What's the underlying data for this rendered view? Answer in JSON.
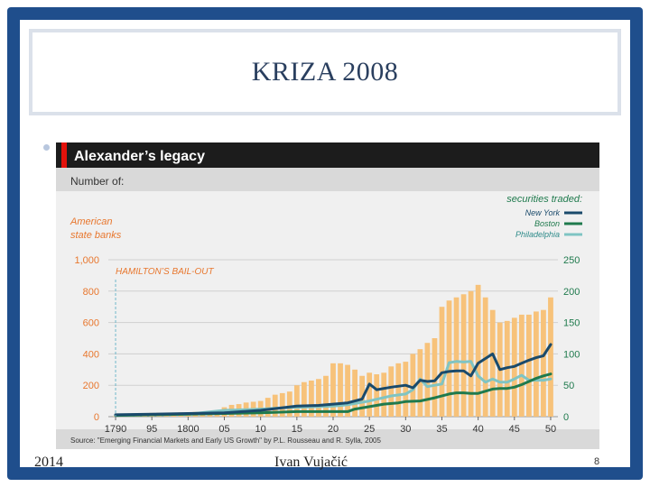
{
  "slide": {
    "title": "KRIZA 2008",
    "footer_left": "2014",
    "footer_center": "Ivan Vujačić",
    "page_number": "8"
  },
  "colors": {
    "frame": "#1f4e8c",
    "chart_title_bar": "#1c1c1c",
    "accent_red": "#e3120b",
    "orange_text": "#e8772e",
    "bars": "#f7c27a",
    "new_york": "#1a4a6b",
    "boston": "#1f7a4d",
    "philadelphia": "#7fc4c3"
  },
  "chart_data": {
    "type": "bar",
    "title": "Alexander’s legacy",
    "subtitle": "Number of:",
    "left_axis_label": [
      "American",
      "state banks"
    ],
    "right_axis_label": "securities traded:",
    "annotation": "HAMILTON’S BAIL-OUT",
    "annotation_x": 1790,
    "source": "Source: \"Emerging Financial Markets and Early US Growth\" by P.L. Rousseau and R. Sylla, 2005",
    "x_ticks": [
      {
        "x": 1790,
        "label": "1790"
      },
      {
        "x": 1795,
        "label": "95"
      },
      {
        "x": 1800,
        "label": "1800"
      },
      {
        "x": 1805,
        "label": "05"
      },
      {
        "x": 1810,
        "label": "10"
      },
      {
        "x": 1815,
        "label": "15"
      },
      {
        "x": 1820,
        "label": "20"
      },
      {
        "x": 1825,
        "label": "25"
      },
      {
        "x": 1830,
        "label": "30"
      },
      {
        "x": 1835,
        "label": "35"
      },
      {
        "x": 1840,
        "label": "40"
      },
      {
        "x": 1845,
        "label": "45"
      },
      {
        "x": 1850,
        "label": "50"
      }
    ],
    "left_ticks": [
      {
        "v": 0,
        "label": "0"
      },
      {
        "v": 200,
        "label": "200"
      },
      {
        "v": 400,
        "label": "400"
      },
      {
        "v": 600,
        "label": "600"
      },
      {
        "v": 800,
        "label": "800"
      },
      {
        "v": 1000,
        "label": "1,000"
      }
    ],
    "right_ticks": [
      {
        "v": 0,
        "label": "0"
      },
      {
        "v": 50,
        "label": "50"
      },
      {
        "v": 100,
        "label": "100"
      },
      {
        "v": 150,
        "label": "150"
      },
      {
        "v": 200,
        "label": "200"
      },
      {
        "v": 250,
        "label": "250"
      }
    ],
    "xlim": [
      1789,
      1851
    ],
    "ylim_left": [
      0,
      1000
    ],
    "ylim_right": [
      0,
      250
    ],
    "bar_series": {
      "name": "American state banks",
      "x": [
        1790,
        1791,
        1792,
        1793,
        1794,
        1795,
        1796,
        1797,
        1798,
        1799,
        1800,
        1801,
        1802,
        1803,
        1804,
        1805,
        1806,
        1807,
        1808,
        1809,
        1810,
        1811,
        1812,
        1813,
        1814,
        1815,
        1816,
        1817,
        1818,
        1819,
        1820,
        1821,
        1822,
        1823,
        1824,
        1825,
        1826,
        1827,
        1828,
        1829,
        1830,
        1831,
        1832,
        1833,
        1834,
        1835,
        1836,
        1837,
        1838,
        1839,
        1840,
        1841,
        1842,
        1843,
        1844,
        1845,
        1846,
        1847,
        1848,
        1849,
        1850
      ],
      "values": [
        3,
        4,
        15,
        20,
        22,
        24,
        25,
        26,
        26,
        27,
        28,
        30,
        31,
        33,
        40,
        60,
        75,
        80,
        90,
        95,
        100,
        120,
        140,
        150,
        160,
        200,
        220,
        230,
        240,
        260,
        340,
        340,
        330,
        300,
        260,
        280,
        270,
        280,
        320,
        340,
        350,
        400,
        430,
        470,
        500,
        700,
        740,
        760,
        780,
        800,
        840,
        760,
        680,
        600,
        610,
        630,
        650,
        650,
        670,
        680,
        760
      ]
    },
    "series": [
      {
        "name": "New York",
        "axis": "right",
        "x": [
          1790,
          1795,
          1800,
          1805,
          1810,
          1815,
          1818,
          1820,
          1822,
          1824,
          1825,
          1826,
          1828,
          1830,
          1831,
          1832,
          1833,
          1834,
          1835,
          1836,
          1837,
          1838,
          1839,
          1840,
          1842,
          1843,
          1844,
          1845,
          1846,
          1847,
          1848,
          1849,
          1850
        ],
        "values": [
          3,
          4,
          5,
          6,
          10,
          17,
          18,
          20,
          22,
          28,
          52,
          43,
          47,
          50,
          46,
          58,
          56,
          57,
          70,
          72,
          73,
          73,
          65,
          85,
          100,
          75,
          78,
          80,
          85,
          90,
          94,
          97,
          115
        ]
      },
      {
        "name": "Boston",
        "axis": "right",
        "x": [
          1790,
          1795,
          1800,
          1805,
          1810,
          1815,
          1820,
          1822,
          1823,
          1825,
          1827,
          1829,
          1830,
          1832,
          1834,
          1836,
          1837,
          1838,
          1839,
          1840,
          1842,
          1843,
          1844,
          1845,
          1846,
          1847,
          1848,
          1849,
          1850
        ],
        "values": [
          2,
          3,
          4,
          5,
          6,
          8,
          8,
          8,
          12,
          16,
          20,
          22,
          24,
          25,
          30,
          36,
          38,
          38,
          37,
          37,
          44,
          45,
          45,
          47,
          51,
          56,
          61,
          65,
          68
        ]
      },
      {
        "name": "Philadelphia",
        "axis": "right",
        "x": [
          1790,
          1795,
          1800,
          1805,
          1808,
          1810,
          1813,
          1815,
          1818,
          1820,
          1822,
          1825,
          1828,
          1830,
          1831,
          1832,
          1833,
          1834,
          1835,
          1836,
          1837,
          1838,
          1839,
          1840,
          1841,
          1842,
          1843,
          1844,
          1845,
          1846,
          1847,
          1848,
          1849,
          1850
        ],
        "values": [
          2,
          3,
          4,
          10,
          11,
          12,
          14,
          15,
          16,
          17,
          19,
          25,
          33,
          36,
          43,
          60,
          48,
          50,
          52,
          86,
          88,
          87,
          88,
          65,
          55,
          60,
          55,
          55,
          60,
          66,
          58,
          58,
          58,
          60
        ]
      }
    ]
  }
}
